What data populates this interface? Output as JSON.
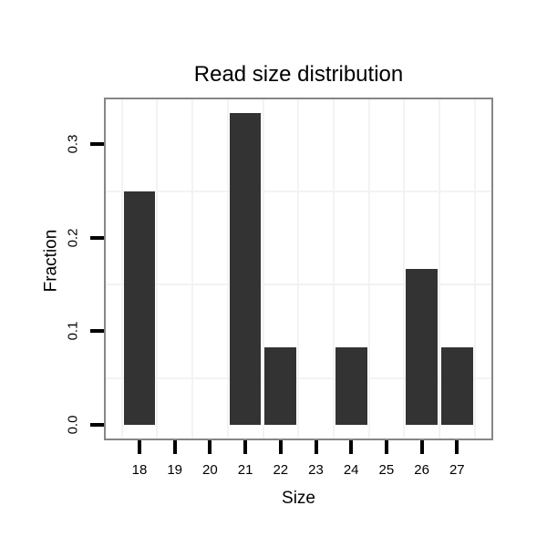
{
  "figure": {
    "kind": "static-plot"
  },
  "chart_data": {
    "type": "bar",
    "title": "Read size distribution",
    "xlabel": "Size",
    "ylabel": "Fraction",
    "categories": [
      18,
      19,
      20,
      21,
      22,
      23,
      24,
      25,
      26,
      27
    ],
    "values": [
      0.25,
      0,
      0,
      0.3333,
      0.0833,
      0,
      0.0833,
      0,
      0.1667,
      0.0833
    ],
    "y_ticks": [
      {
        "label": "0.0",
        "value": 0.0
      },
      {
        "label": "0.1",
        "value": 0.1
      },
      {
        "label": "0.2",
        "value": 0.2
      },
      {
        "label": "0.3",
        "value": 0.3
      }
    ],
    "y_minor_gridlines": [
      0.05,
      0.15,
      0.25
    ],
    "x_minor_gridlines_between_categories": true,
    "ylim": [
      0,
      0.3333
    ],
    "grid": "minor-only",
    "legend": "none",
    "colors": {
      "bar": "#333333",
      "panel_border": "#868686",
      "grid_minor": "#f3f3f3",
      "text": "#000000",
      "background": "#ffffff"
    }
  }
}
